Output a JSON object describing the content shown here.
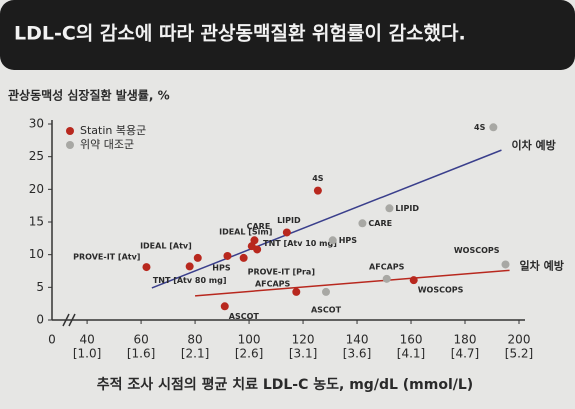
{
  "chart_data": {
    "type": "scatter",
    "title": "LDL-C의 감소에 따라 관상동맥질환 위험률이 감소했다.",
    "y_label": "관상동맥성 심장질환 발생률, %",
    "x_label": "추적 조사 시점의 평균 치료 LDL-C 농도, mg/dL (mmol/L)",
    "x_origin_label": "0",
    "xlim": [
      27,
      200
    ],
    "ylim": [
      0,
      30
    ],
    "xticks": [
      40,
      60,
      80,
      100,
      120,
      140,
      160,
      180,
      200
    ],
    "xtick_mmol": [
      "[1.0]",
      "[1.6]",
      "[2.1]",
      "[2.6]",
      "[3.1]",
      "[3.6]",
      "[4.1]",
      "[4.7]",
      "[5.2]"
    ],
    "yticks": [
      0,
      5,
      10,
      15,
      20,
      25,
      30
    ],
    "series": [
      {
        "name": "Statin 복용군",
        "color": "#b8281e",
        "labels": [
          "PROVE-IT [Atv]",
          "IDEAL [Atv]",
          "TNT [Atv 80 mg]",
          "HPS",
          "ASCOT",
          "CARE",
          "IDEAL [Sim]",
          "PROVE-IT [Pra]",
          "TNT [Atv 10 mg]",
          "LIPID",
          "4S",
          "AFCAPS",
          "WOSCOPS"
        ],
        "x": [
          62,
          81,
          78,
          92,
          91,
          102,
          101,
          98,
          103,
          114,
          125.5,
          117.5,
          161
        ],
        "values": [
          8.1,
          9.5,
          8.2,
          9.8,
          2.1,
          12.2,
          11.3,
          9.5,
          10.8,
          13.4,
          19.8,
          4.3,
          6.1
        ]
      },
      {
        "name": "위약 대조군",
        "color": "#a8a8a4",
        "labels": [
          "4S",
          "LIPID",
          "CARE",
          "HPS",
          "AFCAPS",
          "WOSCOPS",
          "ASCOT"
        ],
        "x": [
          190.5,
          152,
          142,
          131,
          151,
          195,
          128.5
        ],
        "values": [
          29.5,
          17.1,
          14.8,
          12.2,
          6.3,
          8.5,
          4.3
        ]
      },
      {
        "name": "이차 예방",
        "color": "#3a3f8c",
        "x": [
          64,
          193.5
        ],
        "values": [
          4.9,
          26
        ]
      },
      {
        "name": "일차 예방",
        "color": "#b8281e",
        "x": [
          80,
          196.5
        ],
        "values": [
          3.7,
          7.6
        ]
      }
    ]
  }
}
